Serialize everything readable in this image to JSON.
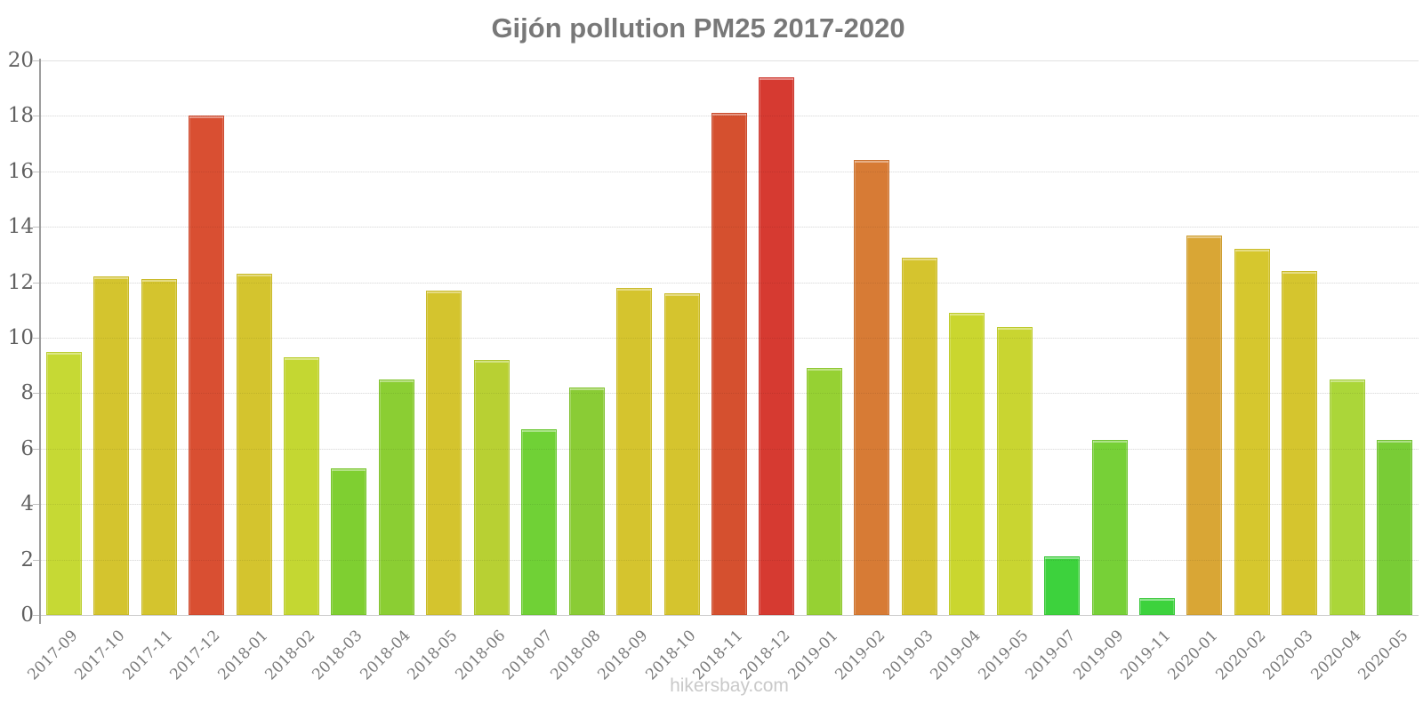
{
  "page": {
    "title": "Gijón pollution PM25 2017-2020",
    "footer": "hikersbay.com"
  },
  "colors": {
    "background": "#ffffff",
    "title_text": "#787878",
    "axis_line": "#9c9c9c",
    "grid_line": "#f4f4f4",
    "top_grid_line": "#e2e2e2",
    "baseline": "#cfcfcf",
    "y_tick_text": "#606060",
    "x_tick_text": "#7a7a7a",
    "footer_text": "#c9c9c9",
    "scale_low_green": "#3dd23d",
    "scale_mid_yellow": "#d4c42e",
    "scale_high_red": "#d63a31"
  },
  "chart_data": {
    "type": "bar",
    "title": "Gijón pollution PM25 2017-2020",
    "xlabel": "",
    "ylabel": "",
    "ylim": [
      0,
      20
    ],
    "yticks": [
      0,
      2,
      4,
      6,
      8,
      10,
      12,
      14,
      16,
      18,
      20
    ],
    "grid": true,
    "legend": false,
    "footer": "hikersbay.com",
    "categories": [
      "2017-09",
      "2017-10",
      "2017-11",
      "2017-12",
      "2018-01",
      "2018-02",
      "2018-03",
      "2018-04",
      "2018-05",
      "2018-06",
      "2018-07",
      "2018-08",
      "2018-09",
      "2018-10",
      "2018-11",
      "2018-12",
      "2019-01",
      "2019-02",
      "2019-03",
      "2019-04",
      "2019-05",
      "2019-07",
      "2019-09",
      "2019-11",
      "2020-01",
      "2020-02",
      "2020-03",
      "2020-04",
      "2020-05"
    ],
    "values": [
      9.5,
      12.2,
      12.1,
      18.0,
      12.3,
      9.3,
      5.3,
      8.5,
      11.7,
      9.2,
      6.7,
      8.2,
      11.8,
      11.6,
      18.1,
      19.4,
      8.9,
      16.4,
      12.9,
      10.9,
      10.4,
      2.1,
      6.3,
      0.6,
      13.7,
      13.2,
      12.4,
      8.5,
      6.3
    ],
    "bar_colors": [
      "#c6d934",
      "#d4c42e",
      "#d4c42e",
      "#d94f32",
      "#d4c42e",
      "#c4d732",
      "#7fcf31",
      "#8bce33",
      "#d4c42e",
      "#b8d033",
      "#70d136",
      "#8acc35",
      "#d5c42e",
      "#d5c42e",
      "#d5502f",
      "#d63a31",
      "#96d133",
      "#d77b35",
      "#d5c42e",
      "#cad62f",
      "#c9d531",
      "#3dd23d",
      "#77d037",
      "#3dd23d",
      "#d9a635",
      "#d6c72e",
      "#d5c52e",
      "#abd639",
      "#79cc36"
    ]
  }
}
